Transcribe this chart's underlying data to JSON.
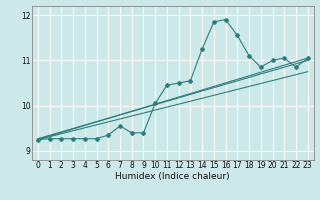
{
  "title": "",
  "xlabel": "Humidex (Indice chaleur)",
  "ylabel": "",
  "bg_color": "#cce8e8",
  "line_color": "#2e7d7d",
  "grid_color": "#ffffff",
  "xlim": [
    -0.5,
    23.5
  ],
  "ylim": [
    8.8,
    12.2
  ],
  "yticks": [
    9,
    10,
    11,
    12
  ],
  "xticks": [
    0,
    1,
    2,
    3,
    4,
    5,
    6,
    7,
    8,
    9,
    10,
    11,
    12,
    13,
    14,
    15,
    16,
    17,
    18,
    19,
    20,
    21,
    22,
    23
  ],
  "series1_x": [
    0,
    1,
    2,
    3,
    4,
    5,
    6,
    7,
    8,
    9,
    10,
    11,
    12,
    13,
    14,
    15,
    16,
    17,
    18,
    19,
    20,
    21,
    22,
    23
  ],
  "series1_y": [
    9.25,
    9.27,
    9.27,
    9.27,
    9.27,
    9.27,
    9.35,
    9.55,
    9.4,
    9.4,
    10.05,
    10.45,
    10.5,
    10.55,
    11.25,
    11.85,
    11.9,
    11.55,
    11.1,
    10.85,
    11.0,
    11.05,
    10.85,
    11.05
  ],
  "series2_x": [
    0,
    23
  ],
  "series2_y": [
    9.25,
    11.05
  ],
  "series3_x": [
    0,
    23
  ],
  "series3_y": [
    9.25,
    10.75
  ],
  "series4_x": [
    0,
    23
  ],
  "series4_y": [
    9.27,
    11.0
  ]
}
